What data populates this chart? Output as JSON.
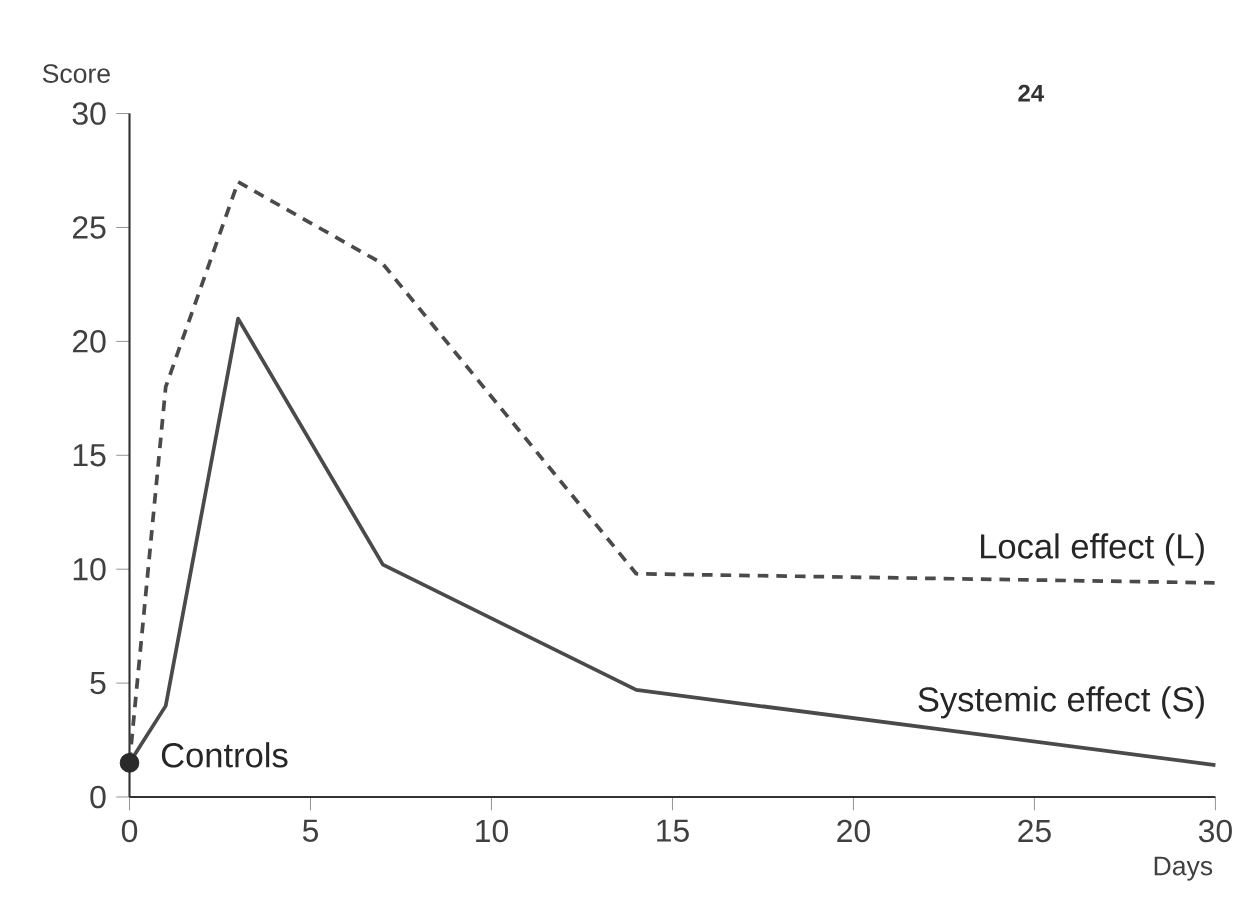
{
  "chart_data": {
    "type": "line",
    "xlabel": "Days",
    "ylabel": "Score",
    "x": [
      0,
      1,
      3,
      7,
      14,
      30
    ],
    "series": [
      {
        "name": "Local effect (L)",
        "color": "#4a4a4a",
        "line_style": "dashed",
        "values": [
          1.5,
          18,
          27,
          23.4,
          9.8,
          9.4
        ]
      },
      {
        "name": "Systemic effect (S)",
        "color": "#4a4a4a",
        "line_style": "solid",
        "values": [
          1.5,
          4,
          21,
          10.2,
          4.7,
          1.4
        ]
      },
      {
        "type": "scatter",
        "color": "#2a2a2a",
        "x": [
          0
        ],
        "values": [
          1.5
        ]
      }
    ],
    "xlim": [
      0,
      30
    ],
    "ylim": [
      0,
      30
    ],
    "xticks": [
      0,
      5,
      10,
      15,
      20,
      25,
      30
    ],
    "yticks": [
      0,
      5,
      10,
      15,
      20,
      25,
      30
    ],
    "grid": false,
    "annotations": [
      {
        "text": "Controls",
        "x": 0,
        "y": 1.5
      },
      "24"
    ]
  }
}
